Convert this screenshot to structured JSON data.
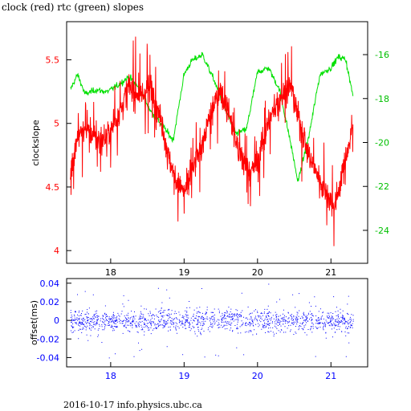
{
  "title": "clock (red) rtc (green) slopes",
  "footer": "2016-10-17 info.physics.ubc.ca",
  "chart_data": [
    {
      "type": "line",
      "xlim": [
        17.4,
        21.5
      ],
      "x_ticks": [
        "18",
        "19",
        "20",
        "21"
      ],
      "ylabel": "clockslope",
      "ylim": [
        3.9,
        5.8
      ],
      "y_left_ticks": [
        "4",
        "4.5",
        "5",
        "5.5"
      ],
      "y_right_ticks": [
        "-16",
        "-18",
        "-20",
        "-22",
        "-24"
      ],
      "y_right_lim": [
        -25.5,
        -14.5
      ],
      "colors": {
        "clock": "#ff0000",
        "rtc": "#00e000"
      },
      "series": [
        {
          "name": "clock",
          "axis": "left",
          "x": [
            17.45,
            17.55,
            17.7,
            17.85,
            18.0,
            18.1,
            18.25,
            18.4,
            18.55,
            18.7,
            18.8,
            18.9,
            19.0,
            19.1,
            19.25,
            19.4,
            19.5,
            19.6,
            19.75,
            19.9,
            20.0,
            20.15,
            20.3,
            20.45,
            20.55,
            20.7,
            20.85,
            20.95,
            21.05,
            21.15,
            21.25,
            21.3
          ],
          "y": [
            4.6,
            4.9,
            4.95,
            4.85,
            4.95,
            5.05,
            5.3,
            5.2,
            5.3,
            5.0,
            4.7,
            4.55,
            4.45,
            4.6,
            4.85,
            5.15,
            5.25,
            5.1,
            4.75,
            4.6,
            4.7,
            5.0,
            5.2,
            5.3,
            5.05,
            4.75,
            4.55,
            4.45,
            4.35,
            4.6,
            4.85,
            5.0
          ]
        },
        {
          "name": "rtc",
          "axis": "right",
          "x": [
            17.45,
            17.55,
            17.65,
            17.8,
            17.95,
            18.1,
            18.25,
            18.4,
            18.55,
            18.7,
            18.85,
            19.0,
            19.1,
            19.25,
            19.4,
            19.55,
            19.7,
            19.85,
            20.0,
            20.15,
            20.3,
            20.45,
            20.55,
            20.7,
            20.85,
            21.0,
            21.1,
            21.2,
            21.3
          ],
          "y": [
            -17.6,
            -16.9,
            -17.8,
            -17.6,
            -17.7,
            -17.4,
            -17.0,
            -17.6,
            -18.6,
            -19.2,
            -19.9,
            -16.9,
            -16.3,
            -16.0,
            -17.1,
            -18.4,
            -19.6,
            -19.4,
            -16.8,
            -16.6,
            -17.6,
            -20.0,
            -21.8,
            -19.7,
            -16.9,
            -16.6,
            -16.1,
            -16.2,
            -17.9
          ]
        }
      ]
    },
    {
      "type": "scatter",
      "ylabel": "offset(ms)",
      "xlim": [
        17.4,
        21.5
      ],
      "ylim": [
        -0.05,
        0.045
      ],
      "x_ticks": [
        "18",
        "19",
        "20",
        "21"
      ],
      "y_ticks": [
        "0.04",
        "0.02",
        "0",
        "-0.02",
        "-0.04"
      ],
      "colors": {
        "points": "#0000ff"
      },
      "series": [
        {
          "x_range": [
            17.45,
            21.3
          ],
          "center": 0.0,
          "spread": 0.015
        }
      ]
    }
  ]
}
